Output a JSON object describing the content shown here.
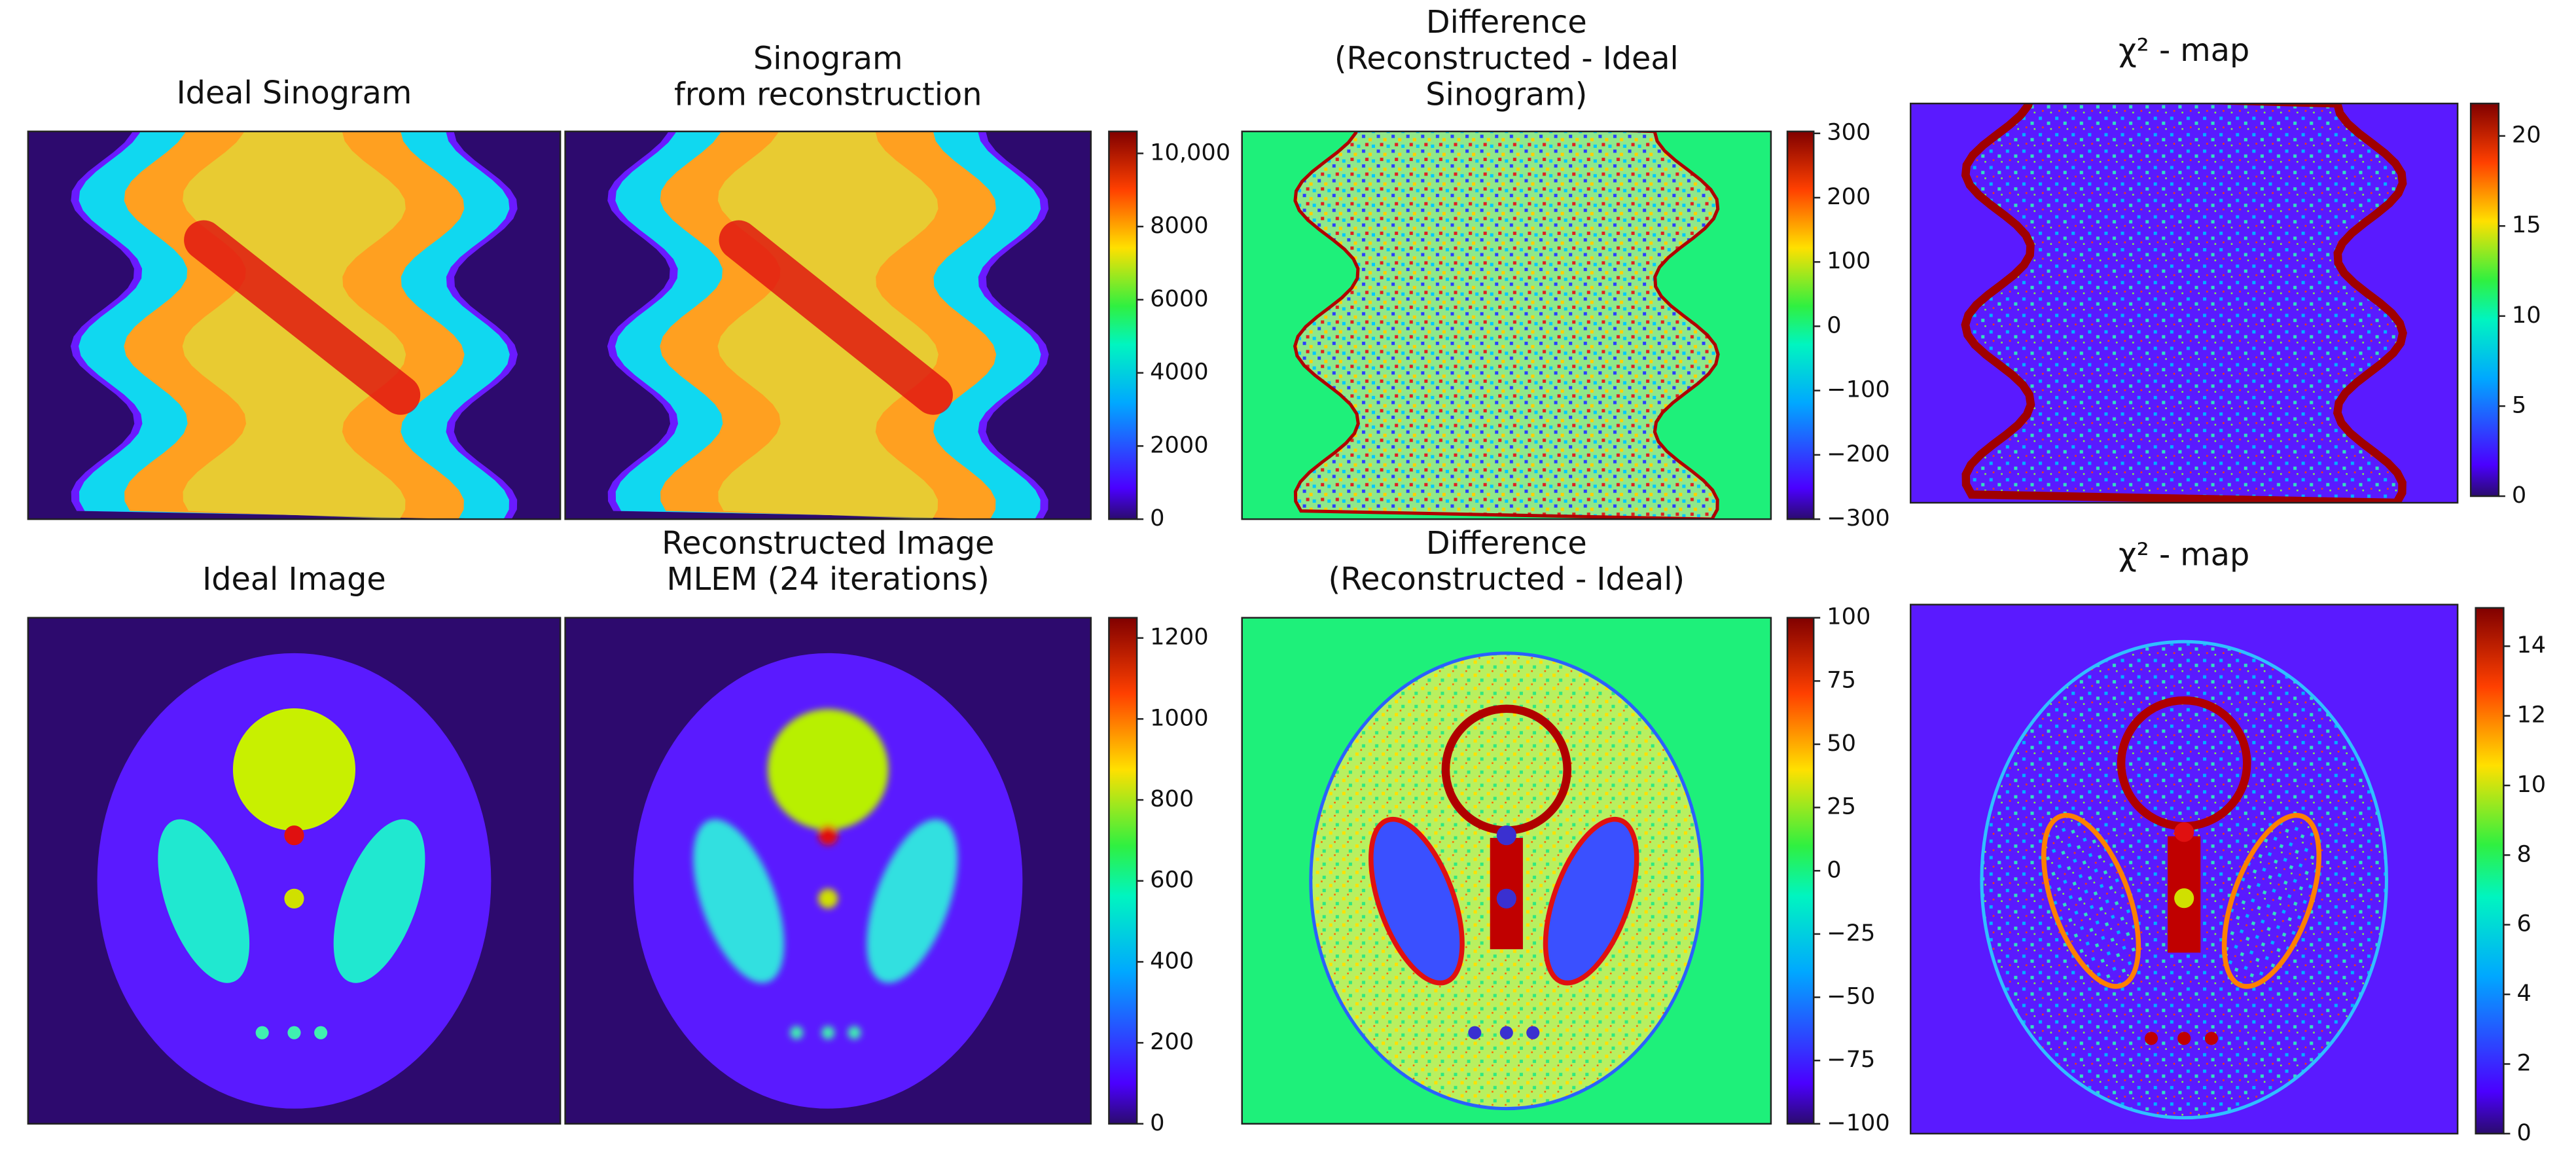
{
  "chart_data": [
    {
      "type": "heatmap",
      "title": [
        "Ideal Sinogram"
      ]
    },
    {
      "type": "heatmap",
      "title": [
        "Sinogram",
        "from reconstruction"
      ],
      "clim": [
        0,
        10600
      ],
      "cticks": [
        0,
        2000,
        4000,
        6000,
        8000,
        {
          "value": 10000,
          "label": "10,000"
        }
      ]
    },
    {
      "type": "heatmap",
      "title": [
        "Difference",
        "(Reconstructed - Ideal",
        "Sinogram)"
      ],
      "clim": [
        -300,
        303
      ],
      "cticks": [
        {
          "value": -300,
          "label": "−300"
        },
        {
          "value": -200,
          "label": "−200"
        },
        {
          "value": -100,
          "label": "−100"
        },
        0,
        100,
        200,
        300
      ]
    },
    {
      "type": "heatmap",
      "title": [
        "χ² - map"
      ],
      "clim": [
        0,
        21.8
      ],
      "cticks": [
        0,
        5,
        10,
        15,
        20
      ]
    },
    {
      "type": "heatmap",
      "title": [
        "Ideal Image"
      ]
    },
    {
      "type": "heatmap",
      "title": [
        "Reconstructed Image",
        "MLEM (24 iterations)"
      ],
      "clim": [
        0,
        1250
      ],
      "cticks": [
        0,
        200,
        400,
        600,
        800,
        1000,
        1200
      ]
    },
    {
      "type": "heatmap",
      "title": [
        "Difference",
        "(Reconstructed - Ideal)"
      ],
      "clim": [
        -100,
        100
      ],
      "cticks": [
        {
          "value": -100,
          "label": "−100"
        },
        {
          "value": -75,
          "label": "−75"
        },
        {
          "value": -50,
          "label": "−50"
        },
        {
          "value": -25,
          "label": "−25"
        },
        0,
        25,
        50,
        75,
        100
      ]
    },
    {
      "type": "heatmap",
      "title": [
        "χ² - map"
      ],
      "clim": [
        0,
        15.1
      ],
      "cticks": [
        0,
        2,
        4,
        6,
        8,
        10,
        12,
        14
      ]
    }
  ]
}
